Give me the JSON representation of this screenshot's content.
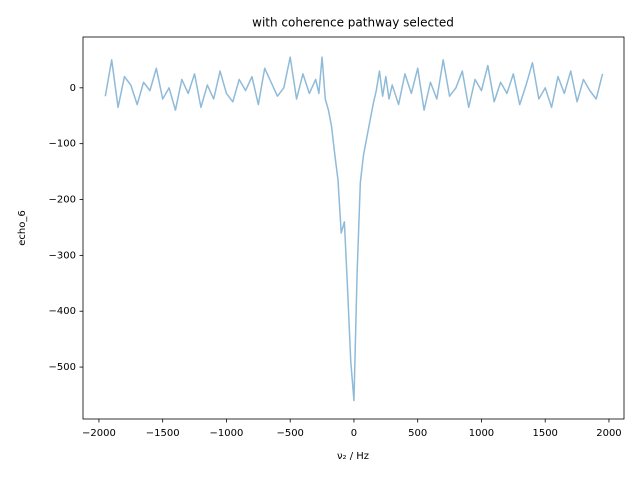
{
  "chart_data": {
    "type": "line",
    "title": "with coherence pathway selected",
    "xlabel": "ν₂ / Hz",
    "ylabel": "echo_6",
    "x": [
      -1950,
      -1900,
      -1850,
      -1800,
      -1750,
      -1700,
      -1650,
      -1600,
      -1550,
      -1500,
      -1450,
      -1400,
      -1350,
      -1300,
      -1250,
      -1200,
      -1150,
      -1100,
      -1050,
      -1000,
      -950,
      -900,
      -850,
      -800,
      -750,
      -700,
      -650,
      -600,
      -550,
      -500,
      -450,
      -400,
      -350,
      -300,
      -275,
      -250,
      -225,
      -200,
      -175,
      -150,
      -125,
      -100,
      -75,
      -50,
      -25,
      0,
      25,
      50,
      75,
      100,
      125,
      150,
      175,
      200,
      225,
      250,
      275,
      300,
      350,
      400,
      450,
      500,
      550,
      600,
      650,
      700,
      750,
      800,
      850,
      900,
      950,
      1000,
      1050,
      1100,
      1150,
      1200,
      1250,
      1300,
      1350,
      1400,
      1450,
      1500,
      1550,
      1600,
      1650,
      1700,
      1750,
      1800,
      1850,
      1900,
      1950
    ],
    "values": [
      -15,
      50,
      -35,
      20,
      5,
      -30,
      10,
      -5,
      35,
      -20,
      0,
      -40,
      15,
      -10,
      25,
      -35,
      5,
      -20,
      30,
      -10,
      -25,
      15,
      -5,
      20,
      -30,
      35,
      10,
      -15,
      0,
      55,
      -20,
      25,
      -10,
      15,
      -10,
      55,
      -20,
      -40,
      -70,
      -120,
      -165,
      -260,
      -240,
      -360,
      -490,
      -560,
      -330,
      -170,
      -120,
      -90,
      -60,
      -30,
      -5,
      30,
      -15,
      20,
      -20,
      5,
      -30,
      25,
      -10,
      35,
      -40,
      10,
      -20,
      50,
      -15,
      0,
      30,
      -35,
      15,
      -5,
      40,
      -25,
      10,
      -10,
      25,
      -30,
      5,
      45,
      -20,
      0,
      -35,
      20,
      -10,
      30,
      -25,
      15,
      -5,
      -20,
      25
    ],
    "color": "#1f77b4",
    "alpha": 0.5,
    "xlim": [
      -2125,
      2118
    ],
    "ylim": [
      -593,
      91
    ],
    "xticks": [
      {
        "value": -2000,
        "label": "−2000"
      },
      {
        "value": -1500,
        "label": "−1500"
      },
      {
        "value": -1000,
        "label": "−1000"
      },
      {
        "value": -500,
        "label": "−500"
      },
      0,
      500,
      1000,
      1500,
      2000
    ],
    "yticks": [
      {
        "value": -500,
        "label": "−500"
      },
      {
        "value": -400,
        "label": "−400"
      },
      {
        "value": -300,
        "label": "−300"
      },
      {
        "value": -200,
        "label": "−200"
      },
      {
        "value": -100,
        "label": "−100"
      },
      0
    ]
  }
}
